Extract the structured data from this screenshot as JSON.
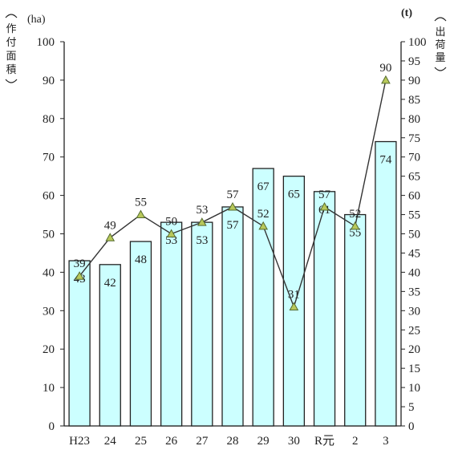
{
  "chart_data": {
    "type": "bar",
    "categories": [
      "H23",
      "24",
      "25",
      "26",
      "27",
      "28",
      "29",
      "30",
      "R元",
      "2",
      "3"
    ],
    "series": [
      {
        "name": "作付面積",
        "type": "bar",
        "axis": "left",
        "values": [
          43,
          42,
          48,
          53,
          53,
          57,
          67,
          65,
          61,
          55,
          74
        ]
      },
      {
        "name": "出荷量",
        "type": "line",
        "axis": "right",
        "values": [
          39,
          49,
          55,
          50,
          53,
          57,
          52,
          31,
          57,
          52,
          90
        ]
      }
    ],
    "y_left": {
      "label": "作付面積",
      "unit": "(ha)",
      "range": [
        0,
        100
      ],
      "ticks": [
        0,
        10,
        20,
        30,
        40,
        50,
        60,
        70,
        80,
        90,
        100
      ]
    },
    "y_right": {
      "label": "出荷量",
      "unit": "(t)",
      "range": [
        0,
        100
      ],
      "ticks": [
        0,
        5,
        10,
        15,
        20,
        25,
        30,
        35,
        40,
        45,
        50,
        55,
        60,
        65,
        70,
        75,
        80,
        85,
        90,
        95,
        100
      ]
    },
    "grid": false,
    "colors": {
      "bar_fill": "#ccffff",
      "bar_stroke": "#222222",
      "line": "#333333",
      "marker_fill": "#b8c85a",
      "marker_stroke": "#556b2f"
    }
  }
}
